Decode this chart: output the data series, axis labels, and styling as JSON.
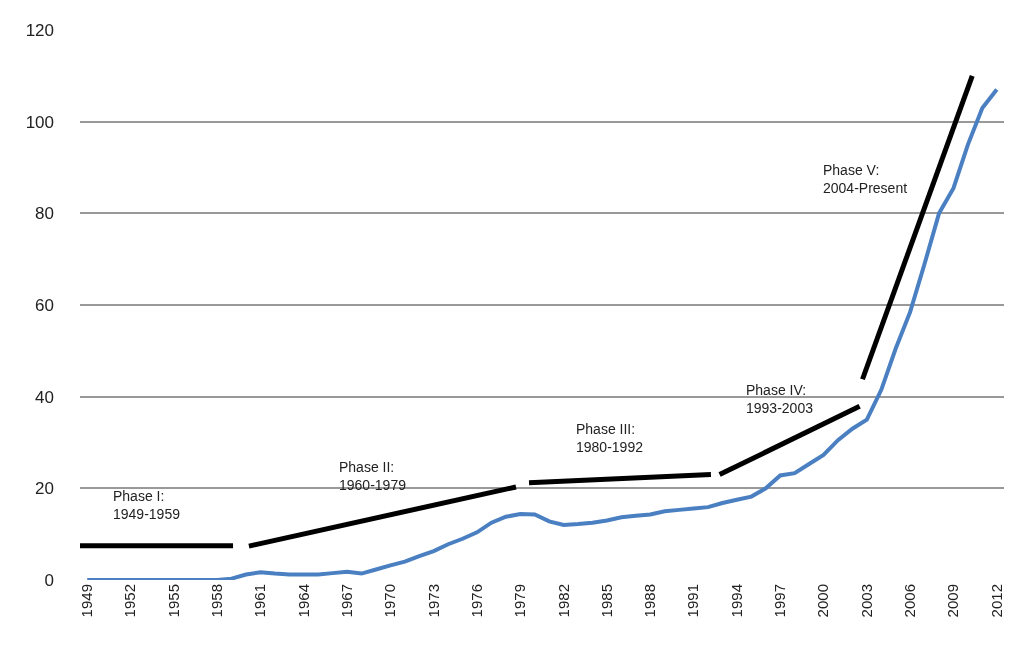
{
  "chart_data": {
    "type": "line",
    "x": [
      1949,
      1950,
      1951,
      1952,
      1953,
      1954,
      1955,
      1956,
      1957,
      1958,
      1959,
      1960,
      1961,
      1962,
      1963,
      1964,
      1965,
      1966,
      1967,
      1968,
      1969,
      1970,
      1971,
      1972,
      1973,
      1974,
      1975,
      1976,
      1977,
      1978,
      1979,
      1980,
      1981,
      1982,
      1983,
      1984,
      1985,
      1986,
      1987,
      1988,
      1989,
      1990,
      1991,
      1992,
      1993,
      1994,
      1995,
      1996,
      1997,
      1998,
      1999,
      2000,
      2001,
      2002,
      2003,
      2004,
      2005,
      2006,
      2007,
      2008,
      2009,
      2010,
      2011,
      2012
    ],
    "series": [
      {
        "color": "#4a7fc1",
        "values": [
          0,
          0,
          0,
          0,
          0,
          0,
          0,
          0,
          0,
          0,
          0.3,
          1.2,
          1.7,
          1.4,
          1.2,
          1.2,
          1.2,
          1.5,
          1.8,
          1.4,
          2.3,
          3.2,
          4.0,
          5.2,
          6.3,
          7.8,
          9.0,
          10.4,
          12.5,
          13.8,
          14.4,
          14.3,
          12.8,
          12.0,
          12.2,
          12.5,
          13.0,
          13.7,
          14.0,
          14.3,
          15.0,
          15.3,
          15.6,
          15.9,
          16.8,
          17.5,
          18.2,
          20.0,
          22.8,
          23.3,
          25.3,
          27.3,
          30.5,
          33.0,
          35.0,
          41.5,
          50.5,
          58.5,
          69,
          80,
          85.5,
          95,
          103,
          107
        ]
      },
      {
        "type": "line",
        "color": "#000000",
        "x": [
          1948.5,
          1959.1
        ],
        "values": [
          7.5,
          7.5
        ]
      },
      {
        "type": "line",
        "color": "#000000",
        "x": [
          1960.2,
          1978.7
        ],
        "values": [
          7.4,
          20.3
        ]
      },
      {
        "type": "line",
        "color": "#000000",
        "x": [
          1979.6,
          1992.2
        ],
        "values": [
          21.2,
          23.0
        ]
      },
      {
        "type": "line",
        "color": "#000000",
        "x": [
          1992.8,
          2002.5
        ],
        "values": [
          23.0,
          37.9
        ]
      },
      {
        "type": "line",
        "color": "#000000",
        "x": [
          2002.7,
          2010.3
        ],
        "values": [
          43.8,
          110
        ]
      }
    ],
    "annotations": [
      "Phase I:\n1949-1959",
      "Phase II:\n1960-1979",
      "Phase III:\n1980-1992",
      "Phase IV:\n1993-2003",
      "Phase V:\n2004-Present"
    ],
    "xlim": [
      1948.5,
      2012.5
    ],
    "xticks": [
      1949,
      1952,
      1955,
      1958,
      1961,
      1964,
      1967,
      1970,
      1973,
      1976,
      1979,
      1982,
      1985,
      1988,
      1991,
      1994,
      1997,
      2000,
      2003,
      2006,
      2009,
      2012
    ],
    "ylim": [
      0,
      120
    ],
    "yticks": [
      0,
      20,
      40,
      60,
      80,
      100,
      120
    ],
    "grid": "y"
  }
}
